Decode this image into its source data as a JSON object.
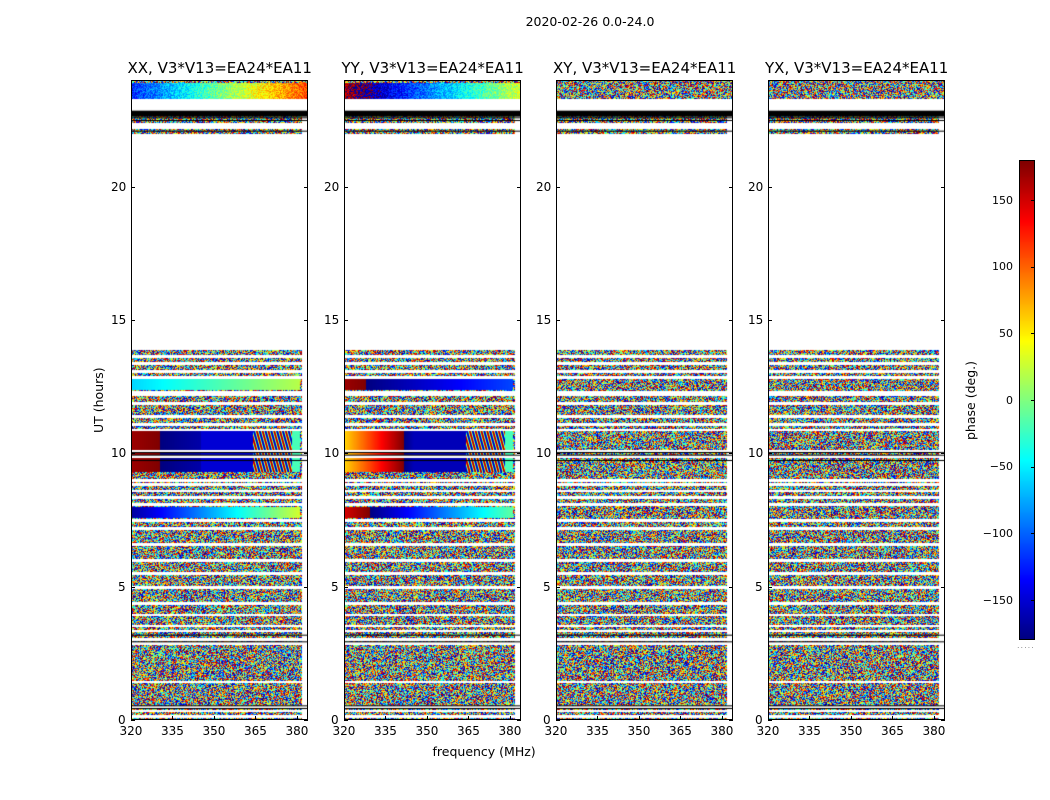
{
  "figure": {
    "suptitle": "2020-02-26 0.0-24.0"
  },
  "chart_data": {
    "type": "heatmap",
    "xlabel": "frequency (MHz)",
    "ylabel": "UT (hours)",
    "xlim": [
      320,
      384
    ],
    "ylim": [
      0,
      24
    ],
    "xticks": [
      320,
      335,
      350,
      365,
      380
    ],
    "yticks": [
      0,
      5,
      10,
      15,
      20
    ],
    "panels": [
      {
        "title": "XX, V3*V13=EA24*EA11",
        "pol": "XX"
      },
      {
        "title": "YY, V3*V13=EA24*EA11",
        "pol": "YY"
      },
      {
        "title": "XY, V3*V13=EA24*EA11",
        "pol": "XY"
      },
      {
        "title": "YX, V3*V13=EA24*EA11",
        "pol": "YX"
      }
    ],
    "colorbar": {
      "label": "phase (deg.)",
      "range": [
        -180,
        180
      ],
      "ticks": [
        150,
        100,
        50,
        0,
        -50,
        -100,
        -150
      ],
      "tick_labels": [
        "150",
        "100",
        "50",
        "0",
        "−50",
        "−100",
        "−150"
      ],
      "colormap": "jet"
    },
    "no_data_ranges_hours": [
      [
        13.9,
        22.0
      ],
      [
        22.2,
        22.4
      ],
      [
        22.8,
        23.3
      ]
    ],
    "coherent_phase_segments": [
      {
        "hours": [
          9.3,
          10.9
        ],
        "freq_mhz": [
          320,
          381
        ],
        "pol": [
          "XX",
          "YY"
        ]
      },
      {
        "hours": [
          12.4,
          12.8
        ],
        "freq_mhz": [
          320,
          381
        ],
        "pol": [
          "XX",
          "YY"
        ]
      },
      {
        "hours": [
          7.6,
          8.0
        ],
        "freq_mhz": [
          320,
          381
        ],
        "pol": [
          "XX",
          "YY"
        ]
      },
      {
        "hours": [
          23.3,
          23.9
        ],
        "freq_mhz": [
          320,
          384
        ],
        "pol": [
          "XX",
          "YY"
        ]
      }
    ]
  }
}
